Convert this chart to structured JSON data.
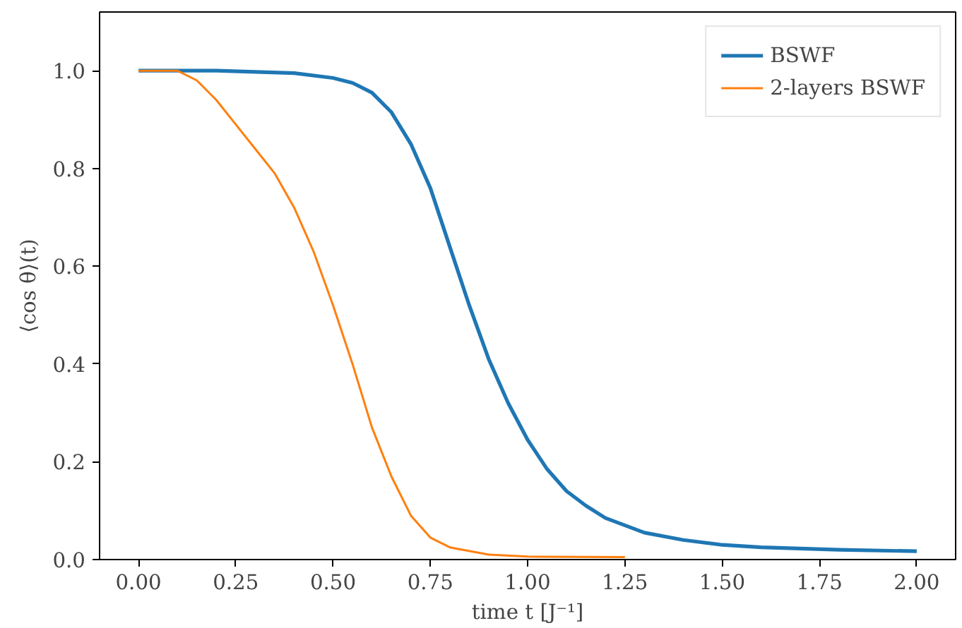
{
  "chart_data": {
    "type": "line",
    "xlabel": "time t [J⁻¹]",
    "ylabel": "⟨cos θ⟩(t)",
    "xlim": [
      -0.1,
      2.1
    ],
    "ylim": [
      0,
      1.12
    ],
    "xticks": [
      {
        "value": 0,
        "label": "0.00"
      },
      {
        "value": 0.25,
        "label": "0.25"
      },
      {
        "value": 0.5,
        "label": "0.50"
      },
      {
        "value": 0.75,
        "label": "0.75"
      },
      {
        "value": 1,
        "label": "1.00"
      },
      {
        "value": 1.25,
        "label": "1.25"
      },
      {
        "value": 1.5,
        "label": "1.50"
      },
      {
        "value": 1.75,
        "label": "1.75"
      },
      {
        "value": 2,
        "label": "2.00"
      }
    ],
    "yticks": [
      {
        "value": 0,
        "label": "0.0"
      },
      {
        "value": 0.2,
        "label": "0.2"
      },
      {
        "value": 0.4,
        "label": "0.4"
      },
      {
        "value": 0.6,
        "label": "0.6"
      },
      {
        "value": 0.8,
        "label": "0.8"
      },
      {
        "value": 1,
        "label": "1.0"
      }
    ],
    "grid": false,
    "legend": "top right",
    "marker": "none",
    "line_style": "solid",
    "series": [
      {
        "name": "BSWF",
        "color": "#1f77b4",
        "x": [
          0,
          0.2,
          0.4,
          0.5,
          0.55,
          0.6,
          0.65,
          0.7,
          0.75,
          0.8,
          0.85,
          0.9,
          0.95,
          1.0,
          1.05,
          1.1,
          1.15,
          1.2,
          1.3,
          1.4,
          1.5,
          1.6,
          1.8,
          2.0
        ],
        "values": [
          1,
          1,
          0.995,
          0.985,
          0.975,
          0.955,
          0.915,
          0.85,
          0.76,
          0.64,
          0.52,
          0.41,
          0.32,
          0.245,
          0.185,
          0.14,
          0.11,
          0.085,
          0.055,
          0.04,
          0.03,
          0.025,
          0.02,
          0.017
        ]
      },
      {
        "name": "2-layers BSWF",
        "color": "#ff7f0e",
        "x": [
          0,
          0.1,
          0.15,
          0.2,
          0.25,
          0.3,
          0.35,
          0.4,
          0.45,
          0.5,
          0.55,
          0.6,
          0.65,
          0.7,
          0.75,
          0.8,
          0.9,
          1.0,
          1.25
        ],
        "values": [
          1,
          1,
          0.98,
          0.94,
          0.89,
          0.84,
          0.79,
          0.72,
          0.63,
          0.52,
          0.4,
          0.27,
          0.17,
          0.09,
          0.045,
          0.025,
          0.01,
          0.006,
          0.005
        ]
      }
    ]
  }
}
